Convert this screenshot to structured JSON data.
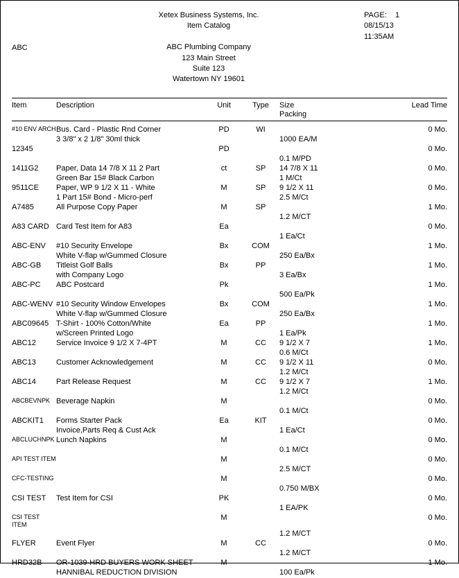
{
  "header": {
    "company": "Xetex Business Systems, Inc.",
    "title": "Item Catalog",
    "customer_code": "ABC",
    "customer_name": "ABC Plumbing Company",
    "addr1": "123 Main Street",
    "addr2": "Suite 123",
    "city_state_zip": "Watertown  NY  19601",
    "page_label": "PAGE:",
    "page_num": "1",
    "date": "08/15/13",
    "time": "11:35AM"
  },
  "columns": {
    "item": "Item",
    "description": "Description",
    "unit": "Unit",
    "type": "Type",
    "size": "Size",
    "packing": "Packing",
    "lead": "Lead Time"
  },
  "rows": [
    {
      "item": "#10 ENV ARCH",
      "item_small": true,
      "desc": "Bus. Card - Plastic Rnd Corner",
      "desc2": "3 3/8\" x 2 1/8\" 30ml thick",
      "unit": "PD",
      "type": "WI",
      "size": "",
      "pack": "1000 EA/M",
      "lead": "0 Mo."
    },
    {
      "item": "12345",
      "desc": "",
      "unit": "PD",
      "type": "",
      "size": "",
      "pack": "0.1 M/PD",
      "lead": "0 Mo."
    },
    {
      "item": "1411G2",
      "desc": "Paper, Data 14 7/8 X 11 2 Part",
      "desc2": "Green Bar 15# Black Carbon",
      "unit": "ct",
      "type": "SP",
      "size": "14 7/8 X 11",
      "pack": "1 M/Ct",
      "lead": "0 Mo."
    },
    {
      "item": "9511CE",
      "desc": "Paper, WP 9 1/2 X 11 - White",
      "desc2": "1 Part 15# Bond - Micro-perf",
      "unit": "M",
      "type": "SP",
      "size": "9 1/2 X 11",
      "pack": "2.5 M/Ct",
      "lead": "0 Mo."
    },
    {
      "item": "A7485",
      "desc": "All Purpose Copy Paper",
      "unit": "M",
      "type": "SP",
      "size": "",
      "pack": "1.2 M/CT",
      "lead": "1 Mo."
    },
    {
      "item": "A83 CARD",
      "desc": "Card Test Item for A83",
      "unit": "Ea",
      "type": "",
      "size": "",
      "pack": "1 Ea/Ct",
      "lead": "0 Mo."
    },
    {
      "item": "ABC-ENV",
      "desc": "#10 Security Envelope",
      "desc2": "White V-flap w/Gummed Closure",
      "unit": "Bx",
      "type": "COM",
      "size": "",
      "pack": "250 Ea/Bx",
      "lead": "1 Mo."
    },
    {
      "item": "ABC-GB",
      "desc": "Titleist Golf Balls",
      "desc2": "with Company Logo",
      "unit": "Bx",
      "type": "PP",
      "size": "",
      "pack": "3 Ea/Bx",
      "lead": "1 Mo."
    },
    {
      "item": "ABC-PC",
      "desc": "ABC Postcard",
      "unit": "Pk",
      "type": "",
      "size": "",
      "pack": "500 Ea/Pk",
      "lead": "1 Mo."
    },
    {
      "item": "ABC-WENV",
      "desc": "#10 Security Window Envelopes",
      "desc2": "White V-flap w/Gummed Closure",
      "unit": "Bx",
      "type": "COM",
      "size": "",
      "pack": "250 Ea/Bx",
      "lead": "1 Mo."
    },
    {
      "item": "ABC09645",
      "desc": "T-Shirt - 100% Cotton/White",
      "desc2": "w/Screen Printed Logo",
      "unit": "Ea",
      "type": "PP",
      "size": "",
      "pack": "1 Ea/Pk",
      "lead": "1 Mo."
    },
    {
      "item": "ABC12",
      "desc": "Service Invoice 9 1/2 X 7-4PT",
      "unit": "M",
      "type": "CC",
      "size": "9 1/2 X 7",
      "pack": "0.6 M/Ct",
      "lead": "1 Mo."
    },
    {
      "item": "ABC13",
      "desc": "Customer Acknowledgement",
      "unit": "M",
      "type": "CC",
      "size": "9 1/2 X 11",
      "pack": "1.2 M/Ct",
      "lead": "0 Mo."
    },
    {
      "item": "ABC14",
      "desc": "Part Release Request",
      "unit": "M",
      "type": "CC",
      "size": "9 1/2 X 7",
      "pack": "1.2 M/Ct",
      "lead": "1 Mo."
    },
    {
      "item": "ABCBEVNPK",
      "item_small": true,
      "desc": "Beverage Napkin",
      "unit": "M",
      "type": "",
      "size": "",
      "pack": "0.1 M/Ct",
      "lead": "0 Mo."
    },
    {
      "item": "ABCKIT1",
      "desc": "Forms Starter Pack",
      "desc2": "Invoice,Parts Req & Cust Ack",
      "unit": "Ea",
      "type": "KIT",
      "size": "",
      "pack": "1 Ea/Ct",
      "lead": "0 Mo."
    },
    {
      "item": "ABCLUCHNPK",
      "item_small": true,
      "desc": "Lunch Napkins",
      "unit": "M",
      "type": "",
      "size": "",
      "pack": "0.1 M/Ct",
      "lead": "0 Mo."
    },
    {
      "item": "API TEST ITEM",
      "item_small": true,
      "desc": "",
      "unit": "M",
      "type": "",
      "size": "",
      "pack": "2.5 M/CT",
      "lead": "0 Mo."
    },
    {
      "item": "CFC-TESTING",
      "item_small": true,
      "desc": "",
      "unit": "M",
      "type": "",
      "size": "",
      "pack": "0.750 M/BX",
      "lead": "0 Mo."
    },
    {
      "item": "CSI TEST",
      "desc": "Test Item for CSI",
      "unit": "PK",
      "type": "",
      "size": "",
      "pack": "1 EA/PK",
      "lead": "0 Mo."
    },
    {
      "item": "CSI TEST ITEM",
      "item_small": true,
      "desc": "",
      "unit": "M",
      "type": "",
      "size": "",
      "pack": "1.2 M/CT",
      "lead": "0 Mo."
    },
    {
      "item": "FLYER",
      "desc": "Event Flyer",
      "unit": "M",
      "type": "CC",
      "size": "",
      "pack": "1.2 M/CT",
      "lead": "0 Mo."
    },
    {
      "item": "HRD32B",
      "desc": "OR-1039-HRD BUYERS WORK SHEET",
      "desc2": "HANNIBAL REDUCTION DIVISION",
      "unit": "M",
      "type": "",
      "size": "",
      "pack": "100 Ea/Pk",
      "lead": "1 Mo."
    }
  ]
}
